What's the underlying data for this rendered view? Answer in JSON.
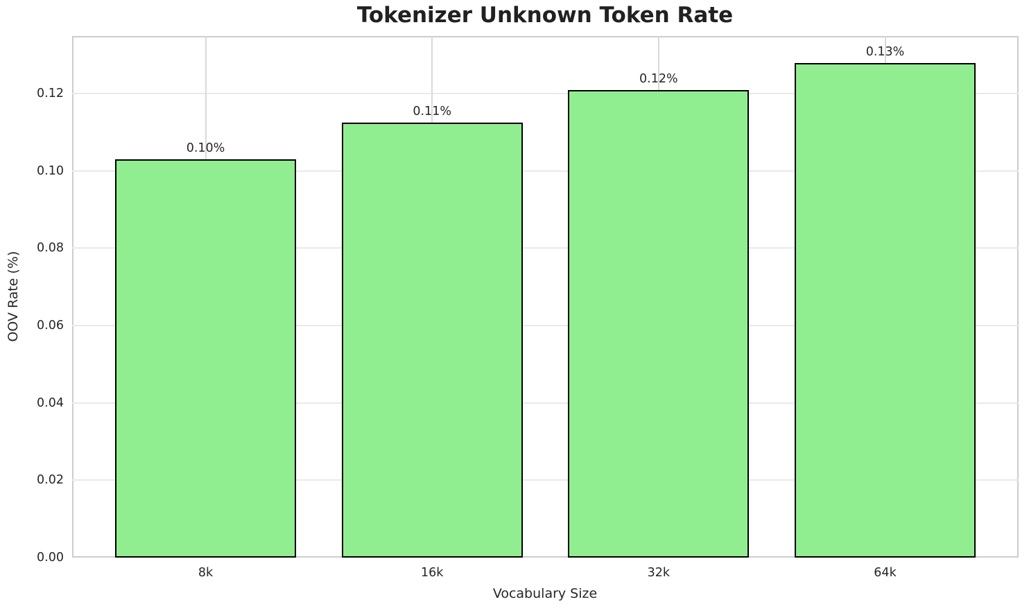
{
  "title": "Tokenizer Unknown Token Rate",
  "chart_data": {
    "type": "bar",
    "title": "Tokenizer Unknown Token Rate",
    "xlabel": "Vocabulary Size",
    "ylabel": "OOV Rate (%)",
    "categories": [
      "8k",
      "16k",
      "32k",
      "64k"
    ],
    "values": [
      0.103,
      0.1125,
      0.121,
      0.128
    ],
    "bar_labels": [
      "0.10%",
      "0.11%",
      "0.12%",
      "0.13%"
    ],
    "ylim": [
      0,
      0.1349
    ],
    "ytick_values": [
      0.0,
      0.02,
      0.04,
      0.06,
      0.08,
      0.1,
      0.12
    ],
    "ytick_labels": [
      "0.00",
      "0.02",
      "0.04",
      "0.06",
      "0.08",
      "0.10",
      "0.12"
    ],
    "grid": true,
    "legend": null,
    "bar_color": "#90EE90",
    "bar_edge_color": "#000000",
    "grid_color_h": "#e9e9e9",
    "grid_color_v": "#d9d9d9",
    "spine_color": "#cccccc"
  }
}
